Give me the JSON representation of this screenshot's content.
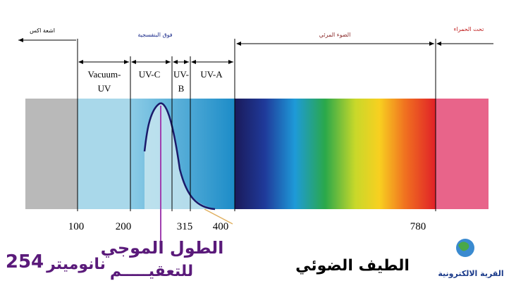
{
  "top_labels": {
    "xray": "اشعة اكس",
    "uv": "فوق البنفسجية",
    "visible": "الضوء المرئي",
    "infrared": "تحت الحمراء"
  },
  "regions": [
    {
      "line1": "Vacuum-",
      "line2": "UV"
    },
    {
      "line1": "UV-C"
    },
    {
      "line1": "UV-",
      "line2": "B"
    },
    {
      "line1": "UV-A"
    }
  ],
  "wavelength_ticks": [
    "100",
    "200",
    "315",
    "400",
    "780"
  ],
  "caption": {
    "sterilization_line1": "الطول الموجي",
    "sterilization_line2": "للتعقيـــــم",
    "wavelength": "254",
    "unit": "نانوميتر",
    "spectrum": "الطيف الضوئي"
  },
  "logo": "القرية الالكترونية"
}
